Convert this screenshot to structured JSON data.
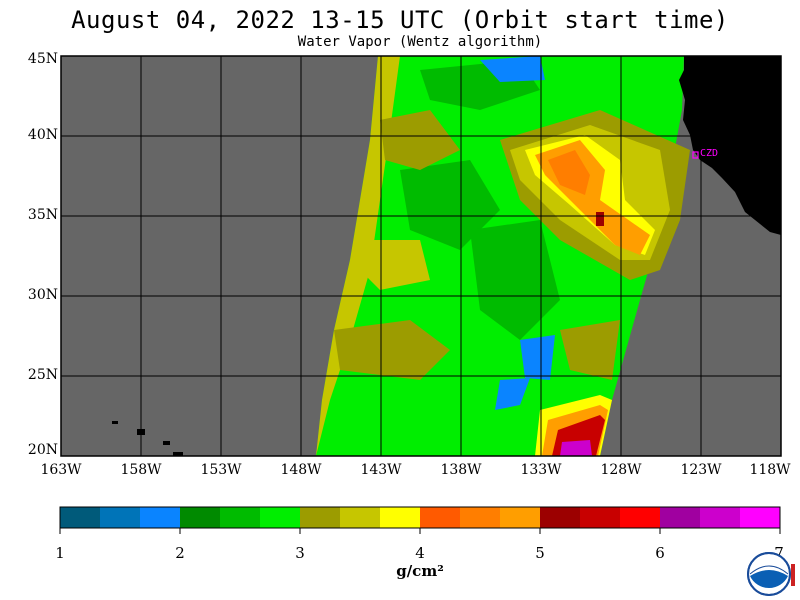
{
  "title": "August 04, 2022  13-15 UTC  (Orbit start time)",
  "subtitle": "Water Vapor (Wentz algorithm)",
  "lat_labels": [
    "45N",
    "40N",
    "35N",
    "30N",
    "25N",
    "20N"
  ],
  "lon_labels": [
    "163W",
    "158W",
    "153W",
    "148W",
    "143W",
    "138W",
    "133W",
    "128W",
    "123W",
    "118W"
  ],
  "station_label": "CZD",
  "colorbar": {
    "ticks": [
      "1",
      "2",
      "3",
      "4",
      "5",
      "6",
      "7"
    ],
    "units": "g/cm²",
    "colors": [
      "#005a7a",
      "#0074b8",
      "#0a84ff",
      "#008a00",
      "#00bb00",
      "#00ee00",
      "#9c9c00",
      "#c6c600",
      "#ffff00",
      "#ff5a00",
      "#ff7e00",
      "#ff9e00",
      "#9c0000",
      "#c80000",
      "#ff0000",
      "#a000a0",
      "#cc00cc",
      "#ff00ff"
    ]
  },
  "colors": {
    "no_data": "#666666",
    "land": "#000000",
    "grid": "#000000",
    "label": "#ff00ff"
  }
}
